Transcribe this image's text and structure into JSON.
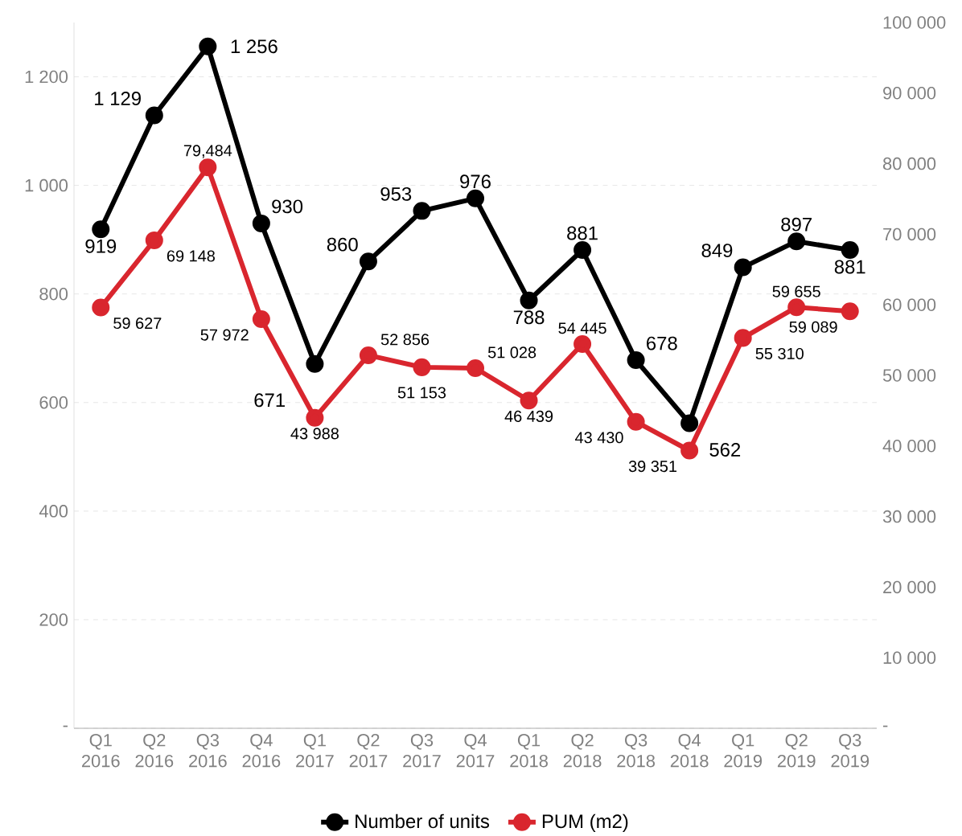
{
  "chart_data": {
    "type": "line",
    "categories": [
      "Q1 2016",
      "Q2 2016",
      "Q3 2016",
      "Q4 2016",
      "Q1 2017",
      "Q2 2017",
      "Q3 2017",
      "Q4 2017",
      "Q1 2018",
      "Q2 2018",
      "Q3 2018",
      "Q4 2018",
      "Q1 2019",
      "Q2 2019",
      "Q3 2019"
    ],
    "series": [
      {
        "name": "Number of units",
        "color": "#000000",
        "values": [
          919,
          1129,
          1256,
          930,
          671,
          860,
          953,
          976,
          788,
          881,
          678,
          562,
          849,
          897,
          881
        ],
        "value_labels": [
          "919",
          "1 129",
          "1 256",
          "930",
          "671",
          "860",
          "953",
          "976",
          "788",
          "881",
          "678",
          "562",
          "849",
          "897",
          "881"
        ]
      },
      {
        "name": "PUM (m2)",
        "color": "#d9262e",
        "axis": "y2",
        "values": [
          59627,
          69148,
          79484,
          57972,
          43988,
          52856,
          51153,
          51028,
          46439,
          54445,
          43430,
          39351,
          55310,
          59655,
          59089
        ],
        "value_labels": [
          "59 627",
          "69 148",
          "79,484",
          "57 972",
          "43 988",
          "52 856",
          "51 153",
          "51 028",
          "46 439",
          "54 445",
          "43 430",
          "39 351",
          "55 310",
          "59 655",
          "59 089"
        ]
      }
    ],
    "ylim": [
      0,
      1300
    ],
    "yticks": [
      {
        "value": 0,
        "label": "-"
      },
      200,
      400,
      600,
      800,
      {
        "value": 1000,
        "label": "1 000"
      },
      {
        "value": 1200,
        "label": "1 200"
      }
    ],
    "y2lim": [
      0,
      100000
    ],
    "y2ticks": [
      {
        "value": 0,
        "label": "-"
      },
      {
        "value": 10000,
        "label": "10 000"
      },
      {
        "value": 20000,
        "label": "20 000"
      },
      {
        "value": 30000,
        "label": "30 000"
      },
      {
        "value": 40000,
        "label": "40 000"
      },
      {
        "value": 50000,
        "label": "50 000"
      },
      {
        "value": 60000,
        "label": "60 000"
      },
      {
        "value": 70000,
        "label": "70 000"
      },
      {
        "value": 80000,
        "label": "80 000"
      },
      {
        "value": 90000,
        "label": "90 000"
      },
      {
        "value": 100000,
        "label": "100 000"
      }
    ],
    "grid": "y",
    "legend": "bottom",
    "marker": "circle",
    "line_style": "solid"
  }
}
